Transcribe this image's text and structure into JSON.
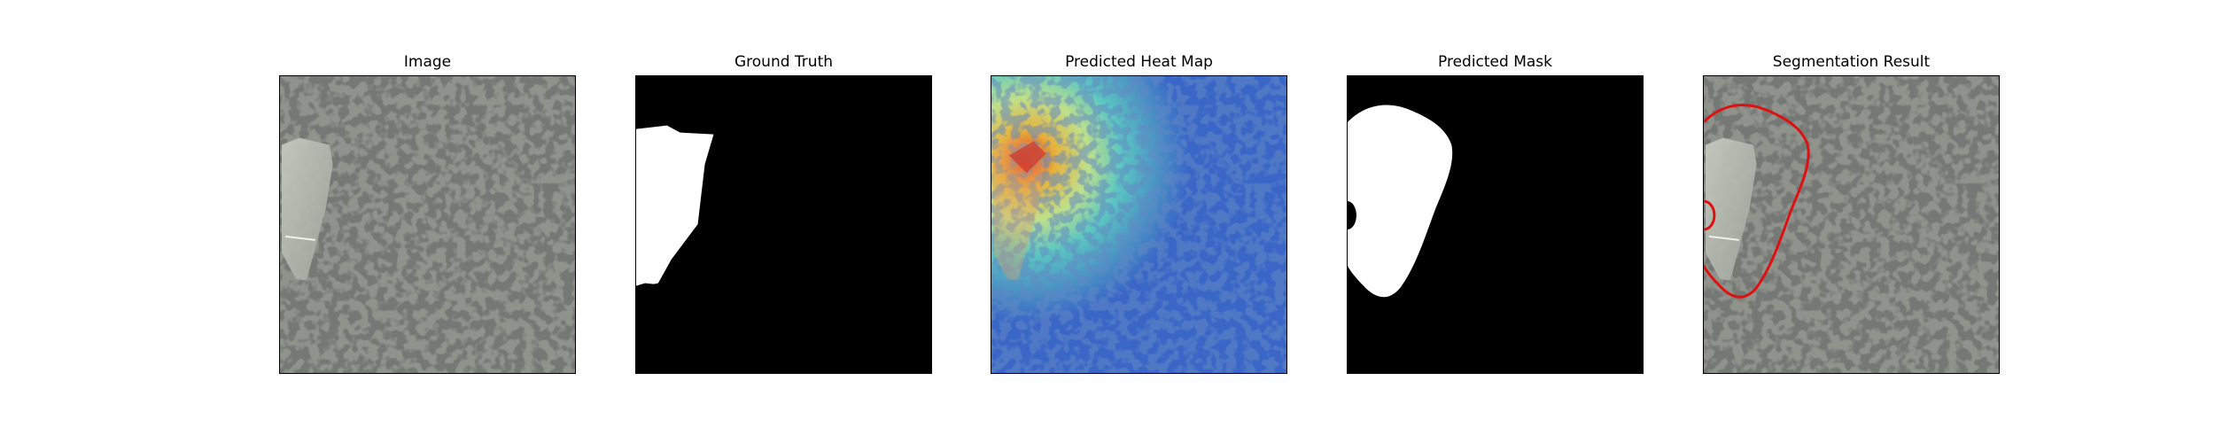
{
  "panels": [
    {
      "title": "Image"
    },
    {
      "title": "Ground Truth"
    },
    {
      "title": "Predicted Heat Map"
    },
    {
      "title": "Predicted Mask"
    },
    {
      "title": "Segmentation Result"
    }
  ],
  "colors": {
    "surface_base": "#8f938c",
    "surface_spots": "#2f302e",
    "defect_patch": "#b4b8b0",
    "mask_fill": "#ffffff",
    "mask_background": "#000000",
    "contour": "#e01010",
    "heat_low": "#2a4cc8",
    "heat_mid": "#5fd0b0",
    "heat_high": "#e03020"
  }
}
